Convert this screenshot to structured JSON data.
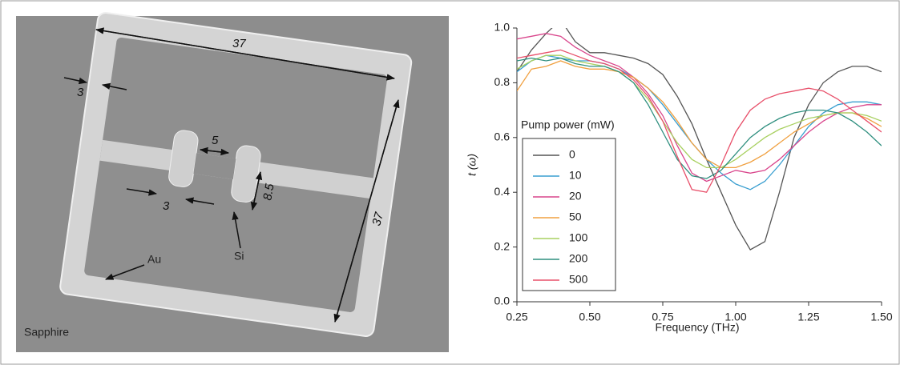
{
  "image": {
    "labels": [
      "37",
      "37",
      "3",
      "5",
      "8.5",
      "3",
      "Si",
      "Au",
      "Sapphire"
    ]
  },
  "chart_data": {
    "type": "line",
    "xlabel": "Frequency (THz)",
    "ylabel": "t (ω)",
    "legend_title": "Pump power (mW)",
    "x": [
      0.25,
      0.3,
      0.35,
      0.4,
      0.45,
      0.5,
      0.55,
      0.6,
      0.65,
      0.7,
      0.75,
      0.8,
      0.85,
      0.9,
      0.95,
      1.0,
      1.05,
      1.1,
      1.15,
      1.2,
      1.25,
      1.3,
      1.35,
      1.4,
      1.45,
      1.5
    ],
    "xlim": [
      0.25,
      1.5
    ],
    "xticks": [
      0.25,
      {
        "value": 0.5,
        "label": "0.50"
      },
      0.75,
      {
        "value": 1,
        "label": "1.00"
      },
      1.25,
      {
        "value": 1.5,
        "label": "1.50"
      }
    ],
    "ylim": [
      0,
      1
    ],
    "yticks": [
      {
        "value": 0,
        "label": "0.0"
      },
      0.2,
      0.4,
      0.6,
      0.8,
      {
        "value": 1,
        "label": "1.0"
      }
    ],
    "series": [
      {
        "name": "0",
        "color": "#555555",
        "values": [
          0.84,
          0.92,
          0.98,
          1.03,
          0.95,
          0.91,
          0.91,
          0.9,
          0.89,
          0.87,
          0.83,
          0.75,
          0.65,
          0.52,
          0.4,
          0.28,
          0.19,
          0.22,
          0.4,
          0.6,
          0.72,
          0.8,
          0.84,
          0.86,
          0.86,
          0.84
        ]
      },
      {
        "name": "10",
        "color": "#3a9fd0",
        "values": [
          0.84,
          0.88,
          0.9,
          0.89,
          0.88,
          0.88,
          0.87,
          0.85,
          0.82,
          0.78,
          0.72,
          0.65,
          0.58,
          0.52,
          0.47,
          0.43,
          0.41,
          0.44,
          0.5,
          0.57,
          0.64,
          0.69,
          0.72,
          0.73,
          0.73,
          0.72
        ]
      },
      {
        "name": "20",
        "color": "#d9468c",
        "values": [
          0.96,
          0.97,
          0.98,
          0.97,
          0.93,
          0.9,
          0.88,
          0.86,
          0.82,
          0.76,
          0.68,
          0.57,
          0.47,
          0.44,
          0.46,
          0.48,
          0.47,
          0.48,
          0.52,
          0.57,
          0.62,
          0.66,
          0.69,
          0.71,
          0.72,
          0.72
        ]
      },
      {
        "name": "50",
        "color": "#f0a040",
        "values": [
          0.77,
          0.85,
          0.86,
          0.88,
          0.86,
          0.85,
          0.85,
          0.84,
          0.82,
          0.78,
          0.73,
          0.66,
          0.58,
          0.52,
          0.49,
          0.49,
          0.51,
          0.54,
          0.58,
          0.62,
          0.65,
          0.68,
          0.69,
          0.69,
          0.67,
          0.64
        ]
      },
      {
        "name": "100",
        "color": "#a8d060",
        "values": [
          0.85,
          0.88,
          0.9,
          0.9,
          0.88,
          0.87,
          0.86,
          0.84,
          0.8,
          0.74,
          0.66,
          0.58,
          0.52,
          0.49,
          0.49,
          0.52,
          0.56,
          0.6,
          0.63,
          0.65,
          0.67,
          0.68,
          0.69,
          0.69,
          0.68,
          0.66
        ]
      },
      {
        "name": "200",
        "color": "#2f8f7f",
        "values": [
          0.88,
          0.89,
          0.88,
          0.89,
          0.87,
          0.86,
          0.86,
          0.84,
          0.8,
          0.72,
          0.62,
          0.52,
          0.46,
          0.45,
          0.48,
          0.54,
          0.6,
          0.64,
          0.67,
          0.69,
          0.7,
          0.7,
          0.69,
          0.66,
          0.62,
          0.57
        ]
      },
      {
        "name": "500",
        "color": "#e8506a",
        "values": [
          0.89,
          0.9,
          0.91,
          0.92,
          0.9,
          0.88,
          0.87,
          0.85,
          0.81,
          0.75,
          0.66,
          0.53,
          0.41,
          0.4,
          0.5,
          0.62,
          0.7,
          0.74,
          0.76,
          0.77,
          0.78,
          0.77,
          0.74,
          0.7,
          0.66,
          0.62
        ]
      }
    ]
  }
}
